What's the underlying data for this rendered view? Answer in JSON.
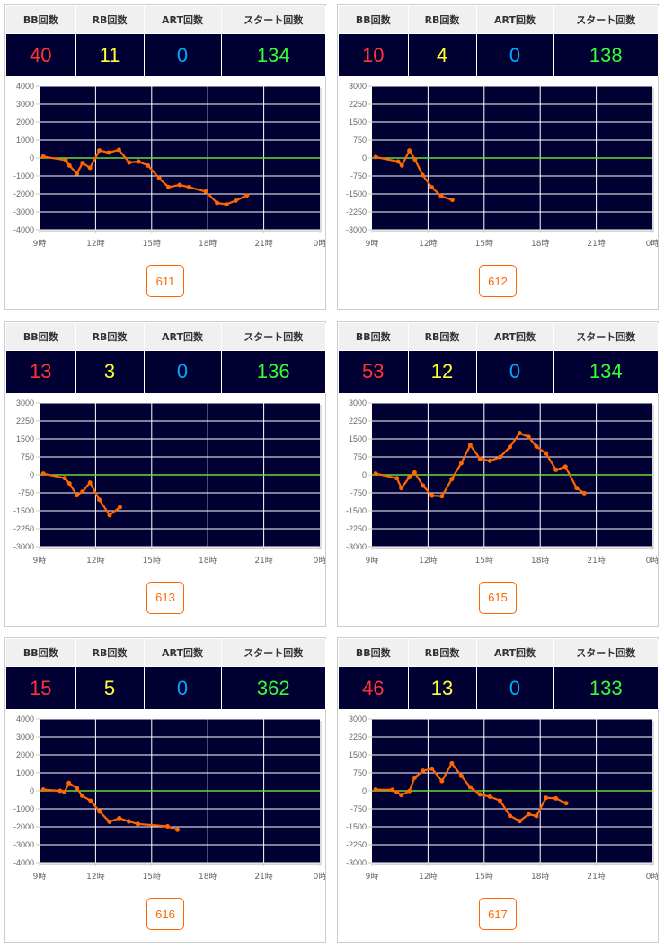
{
  "headers": {
    "bb": "BB回数",
    "rb": "RB回数",
    "art": "ART回数",
    "start": "スタート回数"
  },
  "colors": {
    "bb": "#ff3333",
    "rb": "#ffff33",
    "art": "#00aaff",
    "start": "#33ff33",
    "line": "#ff6600",
    "zero": "#66dd33",
    "plot_bg": "#000033"
  },
  "x_ticks": [
    "9時",
    "12時",
    "15時",
    "18時",
    "21時",
    "0時"
  ],
  "machines": [
    {
      "number": "611",
      "bb": "40",
      "rb": "11",
      "art": "0",
      "start": "134"
    },
    {
      "number": "612",
      "bb": "10",
      "rb": "4",
      "art": "0",
      "start": "138"
    },
    {
      "number": "613",
      "bb": "13",
      "rb": "3",
      "art": "0",
      "start": "136"
    },
    {
      "number": "615",
      "bb": "53",
      "rb": "12",
      "art": "0",
      "start": "134"
    },
    {
      "number": "616",
      "bb": "15",
      "rb": "5",
      "art": "0",
      "start": "362"
    },
    {
      "number": "617",
      "bb": "46",
      "rb": "13",
      "art": "0",
      "start": "133"
    }
  ],
  "chart_data": [
    {
      "type": "line",
      "title": "611",
      "xlim": [
        9,
        24
      ],
      "ylim": [
        -4000,
        4000
      ],
      "yticks": [
        4000,
        3000,
        2000,
        1000,
        0,
        -1000,
        -2000,
        -3000,
        -4000
      ],
      "x": [
        9.2,
        10.4,
        10.6,
        11.0,
        11.3,
        11.7,
        12.2,
        12.7,
        13.25,
        13.8,
        14.3,
        14.8,
        15.4,
        15.9,
        16.5,
        17.0,
        17.9,
        18.5,
        19.0,
        19.5,
        20.1
      ],
      "y": [
        80,
        -120,
        -420,
        -870,
        -280,
        -550,
        420,
        300,
        450,
        -250,
        -200,
        -420,
        -1120,
        -1620,
        -1500,
        -1620,
        -1870,
        -2500,
        -2580,
        -2370,
        -2080
      ]
    },
    {
      "type": "line",
      "title": "612",
      "xlim": [
        9,
        24
      ],
      "ylim": [
        -3000,
        3000
      ],
      "yticks": [
        3000,
        2250,
        1500,
        750,
        0,
        -750,
        -1500,
        -2250,
        -3000
      ],
      "x": [
        9.2,
        10.4,
        10.6,
        11.0,
        11.3,
        11.7,
        12.2,
        12.7,
        13.3
      ],
      "y": [
        40,
        -150,
        -310,
        310,
        -60,
        -710,
        -1225,
        -1590,
        -1750
      ]
    },
    {
      "type": "line",
      "title": "613",
      "xlim": [
        9,
        24
      ],
      "ylim": [
        -3000,
        3000
      ],
      "yticks": [
        3000,
        2250,
        1500,
        750,
        0,
        -750,
        -1500,
        -2250,
        -3000
      ],
      "x": [
        9.2,
        10.35,
        10.6,
        11.0,
        11.3,
        11.7,
        12.2,
        12.75,
        13.3
      ],
      "y": [
        50,
        -140,
        -360,
        -850,
        -700,
        -325,
        -1040,
        -1680,
        -1350
      ]
    },
    {
      "type": "line",
      "title": "615",
      "xlim": [
        9,
        24
      ],
      "ylim": [
        -3000,
        3000
      ],
      "yticks": [
        3000,
        2250,
        1500,
        750,
        0,
        -750,
        -1500,
        -2250,
        -3000
      ],
      "x": [
        9.2,
        10.33,
        10.57,
        11.0,
        11.28,
        11.73,
        12.21,
        12.74,
        13.27,
        13.78,
        14.26,
        14.78,
        15.31,
        15.85,
        16.38,
        16.9,
        17.38,
        17.8,
        18.31,
        18.84,
        19.35,
        19.95,
        20.36
      ],
      "y": [
        50,
        -140,
        -550,
        -100,
        100,
        -450,
        -865,
        -890,
        -175,
        490,
        1240,
        675,
        590,
        740,
        1165,
        1740,
        1580,
        1180,
        900,
        210,
        340,
        -550,
        -765
      ]
    },
    {
      "type": "line",
      "title": "616",
      "xlim": [
        9,
        24
      ],
      "ylim": [
        -4000,
        4000
      ],
      "yticks": [
        4000,
        3000,
        2000,
        1000,
        0,
        -1000,
        -2000,
        -3000,
        -4000
      ],
      "x": [
        9.2,
        10.09,
        10.33,
        10.57,
        11.0,
        11.28,
        11.73,
        12.21,
        12.74,
        13.27,
        13.78,
        14.26,
        15.85,
        16.38
      ],
      "y": [
        70,
        0,
        -80,
        435,
        150,
        -270,
        -550,
        -1150,
        -1720,
        -1520,
        -1700,
        -1840,
        -1975,
        -2160
      ]
    },
    {
      "type": "line",
      "title": "617",
      "xlim": [
        9,
        24
      ],
      "ylim": [
        -3000,
        3000
      ],
      "yticks": [
        3000,
        2250,
        1500,
        750,
        0,
        -750,
        -1500,
        -2250,
        -3000
      ],
      "x": [
        9.2,
        10.09,
        10.33,
        10.57,
        11.0,
        11.28,
        11.73,
        12.21,
        12.74,
        13.27,
        13.78,
        14.26,
        14.78,
        15.31,
        15.85,
        16.38,
        16.9,
        17.38,
        17.8,
        18.31,
        18.84,
        19.39
      ],
      "y": [
        50,
        40,
        -60,
        -175,
        -10,
        550,
        840,
        925,
        410,
        1150,
        625,
        150,
        -150,
        -240,
        -410,
        -1040,
        -1265,
        -975,
        -1050,
        -290,
        -315,
        -515
      ]
    }
  ]
}
